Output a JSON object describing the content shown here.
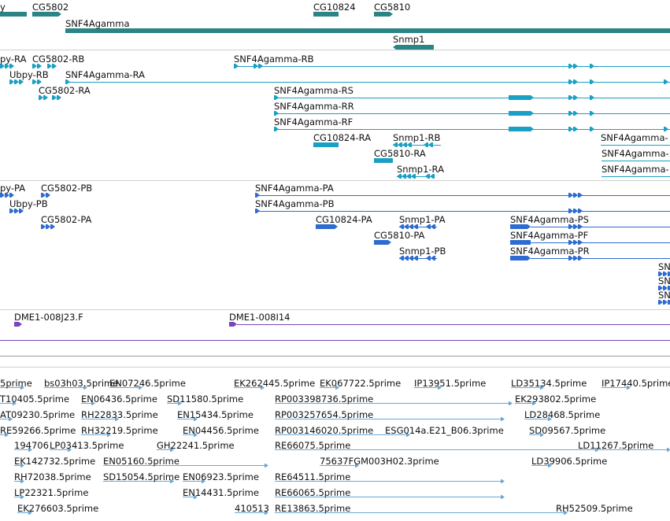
{
  "colors": {
    "gene": "#2b8585",
    "mrna": "#1aa0c4",
    "protein": "#2d6bd1",
    "clone": "#7a44bf",
    "est": "#6aa8d6",
    "separator": "#cfcfcf"
  },
  "tracks": {
    "genes": [
      {
        "label": "y",
        "kind": "block"
      },
      {
        "label": "CG5802",
        "kind": "arrowbar"
      },
      {
        "label": "CG10824",
        "kind": "bar"
      },
      {
        "label": "CG5810",
        "kind": "arrowbar"
      },
      {
        "label": "SNF4Agamma",
        "kind": "longbar"
      },
      {
        "label": "Snmp1",
        "kind": "arrowbar"
      }
    ],
    "transcripts": [
      "py-RA",
      "CG5802-RB",
      "SNF4Agamma-RB",
      "Ubpy-RB",
      "SNF4Agamma-RA",
      "CG5802-RA",
      "SNF4Agamma-RS",
      "SNF4Agamma-RR",
      "SNF4Agamma-RF",
      "CG10824-RA",
      "Snmp1-RB",
      "SNF4Agamma-",
      "CG5810-RA",
      "SNF4Agamma-",
      "Snmp1-RA",
      "SNF4Agamma-"
    ],
    "proteins": [
      "py-PA",
      "CG5802-PB",
      "SNF4Agamma-PA",
      "Ubpy-PB",
      "SNF4Agamma-PB",
      "CG5802-PA",
      "CG10824-PA",
      "Snmp1-PA",
      "SNF4Agamma-PS",
      "CG5810-PA",
      "SNF4Agamma-PF",
      "Snmp1-PB",
      "SNF4Agamma-PR",
      "SN",
      "SN",
      "SN"
    ],
    "clones": [
      "DME1-008J23.F",
      "DME1-008I14"
    ],
    "ests": [
      "5prime",
      "bs03h03.5prime",
      "EN07246.5prime",
      "EK262445.5prime",
      "EK067722.5prime",
      "IP13951.5prime",
      "LD35134.5prime",
      "IP17440.5prime",
      "T10405.5prime",
      "EN06436.5prime",
      "SD11580.5prime",
      "RP003398736.5prime",
      "EK293802.5prime",
      "AT09230.5prime",
      "RH22833.5prime",
      "EN15434.5prime",
      "RP003257654.5prime",
      "LD28468.5prime",
      "RE59266.5prime",
      "RH32219.5prime",
      "EN04456.5prime",
      "RP003146020.5prime",
      "ESG014a.E21_B06.3prime",
      "SD09567.5prime",
      "194706",
      "LP03413.5prime",
      "GH22241.5prime",
      "RE66075.5prime",
      "LD11267.5prime",
      "EK142732.5prime",
      "EN05160.5prime",
      "75637FGM003H02.3prime",
      "LD39906.5prime",
      "RH72038.5prime",
      "SD15054.5prime",
      "EN06923.5prime",
      "RE64511.5prime",
      "LP22321.5prime",
      "EN14431.5prime",
      "RE66065.5prime",
      "EK276603.5prime",
      "410513",
      "RE13863.5prime",
      "RH52509.5prime"
    ]
  }
}
